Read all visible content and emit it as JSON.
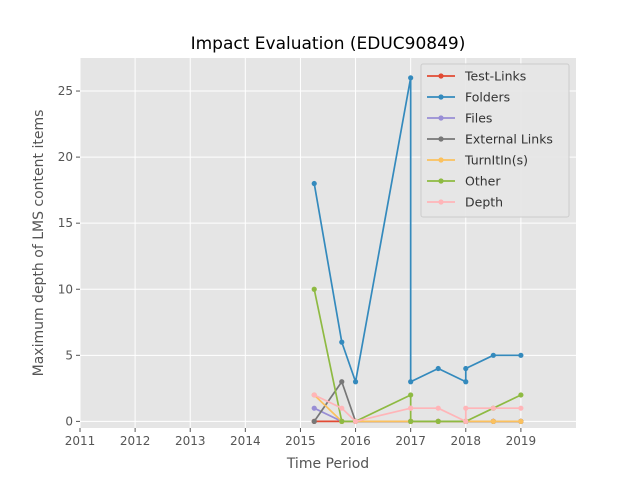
{
  "chart_data": {
    "type": "line",
    "title": "Impact Evaluation (EDUC90849)",
    "xlabel": "Time Period",
    "ylabel": "Maximum depth of LMS content items",
    "xlim": [
      2011,
      2020
    ],
    "ylim": [
      -0.5,
      27.5
    ],
    "xticks": [
      2011,
      2012,
      2013,
      2014,
      2015,
      2016,
      2017,
      2018,
      2019
    ],
    "yticks": [
      0,
      5,
      10,
      15,
      20,
      25
    ],
    "grid": true,
    "legend_position": "top-right",
    "series": [
      {
        "name": "Test-Links",
        "color": "#E24A33",
        "x": [
          2015.25,
          2015.75,
          2016.0,
          2017.0,
          2017.0,
          2017.5,
          2018.0,
          2018.0,
          2018.5,
          2019.0
        ],
        "y": [
          0,
          0,
          0,
          0,
          0,
          0,
          0,
          0,
          0,
          0
        ]
      },
      {
        "name": "Folders",
        "color": "#348ABD",
        "x": [
          2015.25,
          2015.75,
          2016.0,
          2017.0,
          2017.0,
          2017.5,
          2018.0,
          2018.0,
          2018.5,
          2019.0
        ],
        "y": [
          18,
          6,
          3,
          26,
          3,
          4,
          3,
          4,
          5,
          5
        ]
      },
      {
        "name": "Files",
        "color": "#988ED5",
        "x": [
          2015.25,
          2015.75,
          2016.0,
          2017.0,
          2017.0,
          2017.5,
          2018.0,
          2018.0,
          2018.5,
          2019.0
        ],
        "y": [
          1,
          0,
          0,
          0,
          0,
          0,
          0,
          0,
          0,
          0
        ]
      },
      {
        "name": "External Links",
        "color": "#777777",
        "x": [
          2015.25,
          2015.75,
          2016.0,
          2017.0,
          2017.0,
          2017.5,
          2018.0,
          2018.0,
          2018.5,
          2019.0
        ],
        "y": [
          0,
          3,
          0,
          0,
          0,
          0,
          0,
          0,
          0,
          0
        ]
      },
      {
        "name": "TurnItIn(s)",
        "color": "#FBC15E",
        "x": [
          2015.25,
          2015.75,
          2016.0,
          2017.0,
          2017.0,
          2017.5,
          2018.0,
          2018.0,
          2018.5,
          2019.0
        ],
        "y": [
          2,
          0,
          0,
          0,
          0,
          0,
          0,
          0,
          0,
          0
        ]
      },
      {
        "name": "Other",
        "color": "#8EBA42",
        "x": [
          2015.25,
          2015.75,
          2016.0,
          2017.0,
          2017.0,
          2017.5,
          2018.0,
          2018.0,
          2018.5,
          2019.0
        ],
        "y": [
          10,
          0,
          0,
          2,
          0,
          0,
          0,
          0,
          1,
          2
        ]
      },
      {
        "name": "Depth",
        "color": "#FFB5B8",
        "x": [
          2015.25,
          2015.75,
          2016.0,
          2017.0,
          2017.0,
          2017.5,
          2018.0,
          2018.0,
          2018.5,
          2019.0
        ],
        "y": [
          2,
          1,
          0,
          1,
          1,
          1,
          0,
          1,
          1,
          1
        ]
      }
    ]
  }
}
